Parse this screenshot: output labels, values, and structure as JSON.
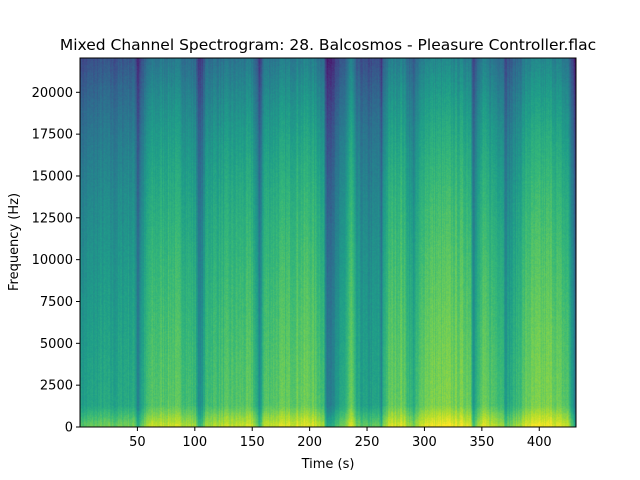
{
  "chart_data": {
    "type": "heatmap",
    "title": "Mixed Channel Spectrogram: 28. Balcosmos - Pleasure Controller.flac",
    "xlabel": "Time (s)",
    "ylabel": "Frequency (Hz)",
    "xlim": [
      0,
      432
    ],
    "ylim": [
      0,
      22050
    ],
    "x_ticks": [
      50,
      100,
      150,
      200,
      250,
      300,
      350,
      400
    ],
    "y_ticks": [
      0,
      2500,
      5000,
      7500,
      10000,
      12500,
      15000,
      17500,
      20000
    ],
    "x_tick_labels": [
      "50",
      "100",
      "150",
      "200",
      "250",
      "300",
      "350",
      "400"
    ],
    "y_tick_labels": [
      "0",
      "2500",
      "5000",
      "7500",
      "10000",
      "12500",
      "15000",
      "17500",
      "20000"
    ],
    "colormap": "viridis",
    "energy_by_time": {
      "times": [
        0,
        10,
        20,
        30,
        40,
        48,
        50,
        52,
        60,
        80,
        100,
        104,
        110,
        130,
        150,
        156,
        160,
        180,
        200,
        212,
        214,
        222,
        230,
        236,
        240,
        250,
        260,
        262,
        264,
        270,
        280,
        290,
        300,
        320,
        340,
        342,
        350,
        368,
        370,
        390,
        410,
        425,
        432
      ],
      "levels": [
        0.55,
        0.58,
        0.6,
        0.58,
        0.62,
        0.6,
        0.42,
        0.55,
        0.72,
        0.75,
        0.68,
        0.45,
        0.7,
        0.72,
        0.74,
        0.5,
        0.73,
        0.76,
        0.78,
        0.7,
        0.42,
        0.5,
        0.62,
        0.78,
        0.6,
        0.55,
        0.58,
        0.45,
        0.66,
        0.76,
        0.78,
        0.62,
        0.8,
        0.8,
        0.78,
        0.55,
        0.76,
        0.7,
        0.56,
        0.78,
        0.8,
        0.72,
        0.35
      ]
    }
  }
}
